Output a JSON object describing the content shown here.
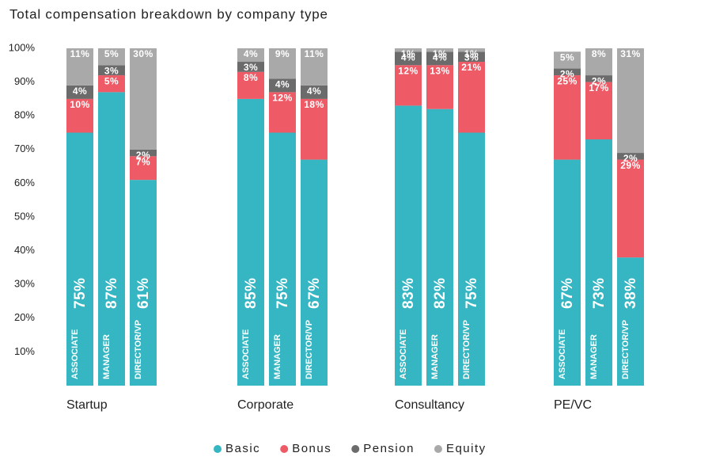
{
  "chart_data": {
    "type": "bar",
    "stacked": true,
    "title": "Total compensation breakdown by company type",
    "groups": [
      "Startup",
      "Corporate",
      "Consultancy",
      "PE/VC"
    ],
    "categories": [
      "ASSOCIATE",
      "MANAGER",
      "DIRECTOR/VP",
      "ASSOCIATE",
      "MANAGER",
      "DIRECTOR/VP",
      "ASSOCIATE",
      "MANAGER",
      "DIRECTOR/VP",
      "ASSOCIATE",
      "MANAGER",
      "DIRECTOR/VP"
    ],
    "series": [
      {
        "name": "Basic",
        "color": "#35b6c2",
        "values": [
          75,
          87,
          61,
          85,
          75,
          67,
          83,
          82,
          75,
          67,
          73,
          38
        ],
        "value_labels": [
          "75%",
          "87%",
          "61%",
          "85%",
          "75%",
          "67%",
          "83%",
          "82%",
          "75%",
          "67%",
          "73%",
          "38%"
        ]
      },
      {
        "name": "Bonus",
        "color": "#ee5b67",
        "values": [
          10,
          5,
          7,
          8,
          12,
          18,
          12,
          13,
          21,
          25,
          17,
          29
        ],
        "value_labels": [
          "10%",
          "5%",
          "7%",
          "8%",
          "12%",
          "18%",
          "12%",
          "13%",
          "21%",
          "25%",
          "17%",
          "29%"
        ]
      },
      {
        "name": "Pension",
        "color": "#6b6b6b",
        "values": [
          4,
          3,
          2,
          3,
          4,
          4,
          4,
          4,
          3,
          2,
          2,
          2
        ],
        "value_labels": [
          "4%",
          "3%",
          "2%",
          "3%",
          "4%",
          "4%",
          "4%",
          "4%",
          "3%",
          "2%",
          "2%",
          "2%"
        ]
      },
      {
        "name": "Equity",
        "color": "#a9a9a9",
        "values": [
          11,
          5,
          30,
          4,
          9,
          11,
          1,
          1,
          1,
          5,
          8,
          31
        ],
        "value_labels": [
          "11%",
          "5%",
          "30%",
          "4%",
          "9%",
          "11%",
          "1%",
          "1%",
          "1%",
          "5%",
          "8%",
          "31%"
        ]
      }
    ],
    "ylim": [
      0,
      100
    ],
    "yticks": [
      {
        "value": 10,
        "label": "10%"
      },
      {
        "value": 20,
        "label": "20%"
      },
      {
        "value": 30,
        "label": "30%"
      },
      {
        "value": 40,
        "label": "40%"
      },
      {
        "value": 50,
        "label": "50%"
      },
      {
        "value": 60,
        "label": "60%"
      },
      {
        "value": 70,
        "label": "70%"
      },
      {
        "value": 80,
        "label": "80%"
      },
      {
        "value": 90,
        "label": "90%"
      },
      {
        "value": 100,
        "label": "100%"
      }
    ],
    "legend": "bottom"
  }
}
